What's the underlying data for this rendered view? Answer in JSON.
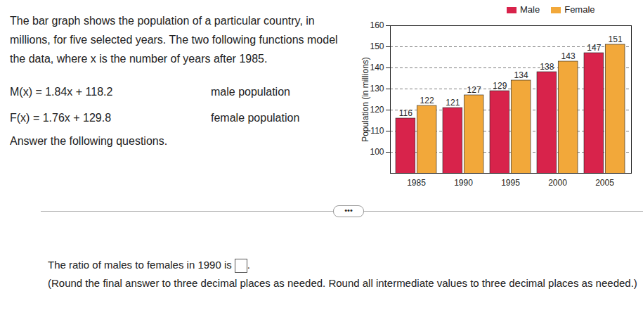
{
  "problem": {
    "intro": "The bar graph shows the population of a particular country, in millions, for five selected years. The two following functions model the data, where x is the number of years after 1985.",
    "models": [
      {
        "function": "M(x) = 1.84x + 118.2",
        "description": "male population"
      },
      {
        "function": "F(x) = 1.76x + 129.8",
        "description": "female population"
      }
    ],
    "instruction": "Answer the following questions.",
    "more_button": "•••",
    "question": {
      "text": "The ratio of males to females in 1990 is",
      "end": ".",
      "note": "(Round the final answer to three decimal places as needed. Round all intermediate values to three decimal places as needed.)"
    }
  },
  "chart_data": {
    "type": "bar",
    "ylabel": "Population (in millions)",
    "categories": [
      "1985",
      "1990",
      "1995",
      "2000",
      "2005"
    ],
    "series": [
      {
        "name": "Male",
        "color": "#d8234b",
        "values": [
          116,
          121,
          129,
          138,
          147
        ]
      },
      {
        "name": "Female",
        "color": "#f2a83a",
        "values": [
          122,
          127,
          134,
          143,
          151
        ]
      }
    ],
    "ylim": [
      90,
      160
    ],
    "yticks": [
      100,
      110,
      120,
      130,
      140,
      150,
      160
    ],
    "grid": true,
    "legend": "top",
    "data_labels": true
  }
}
